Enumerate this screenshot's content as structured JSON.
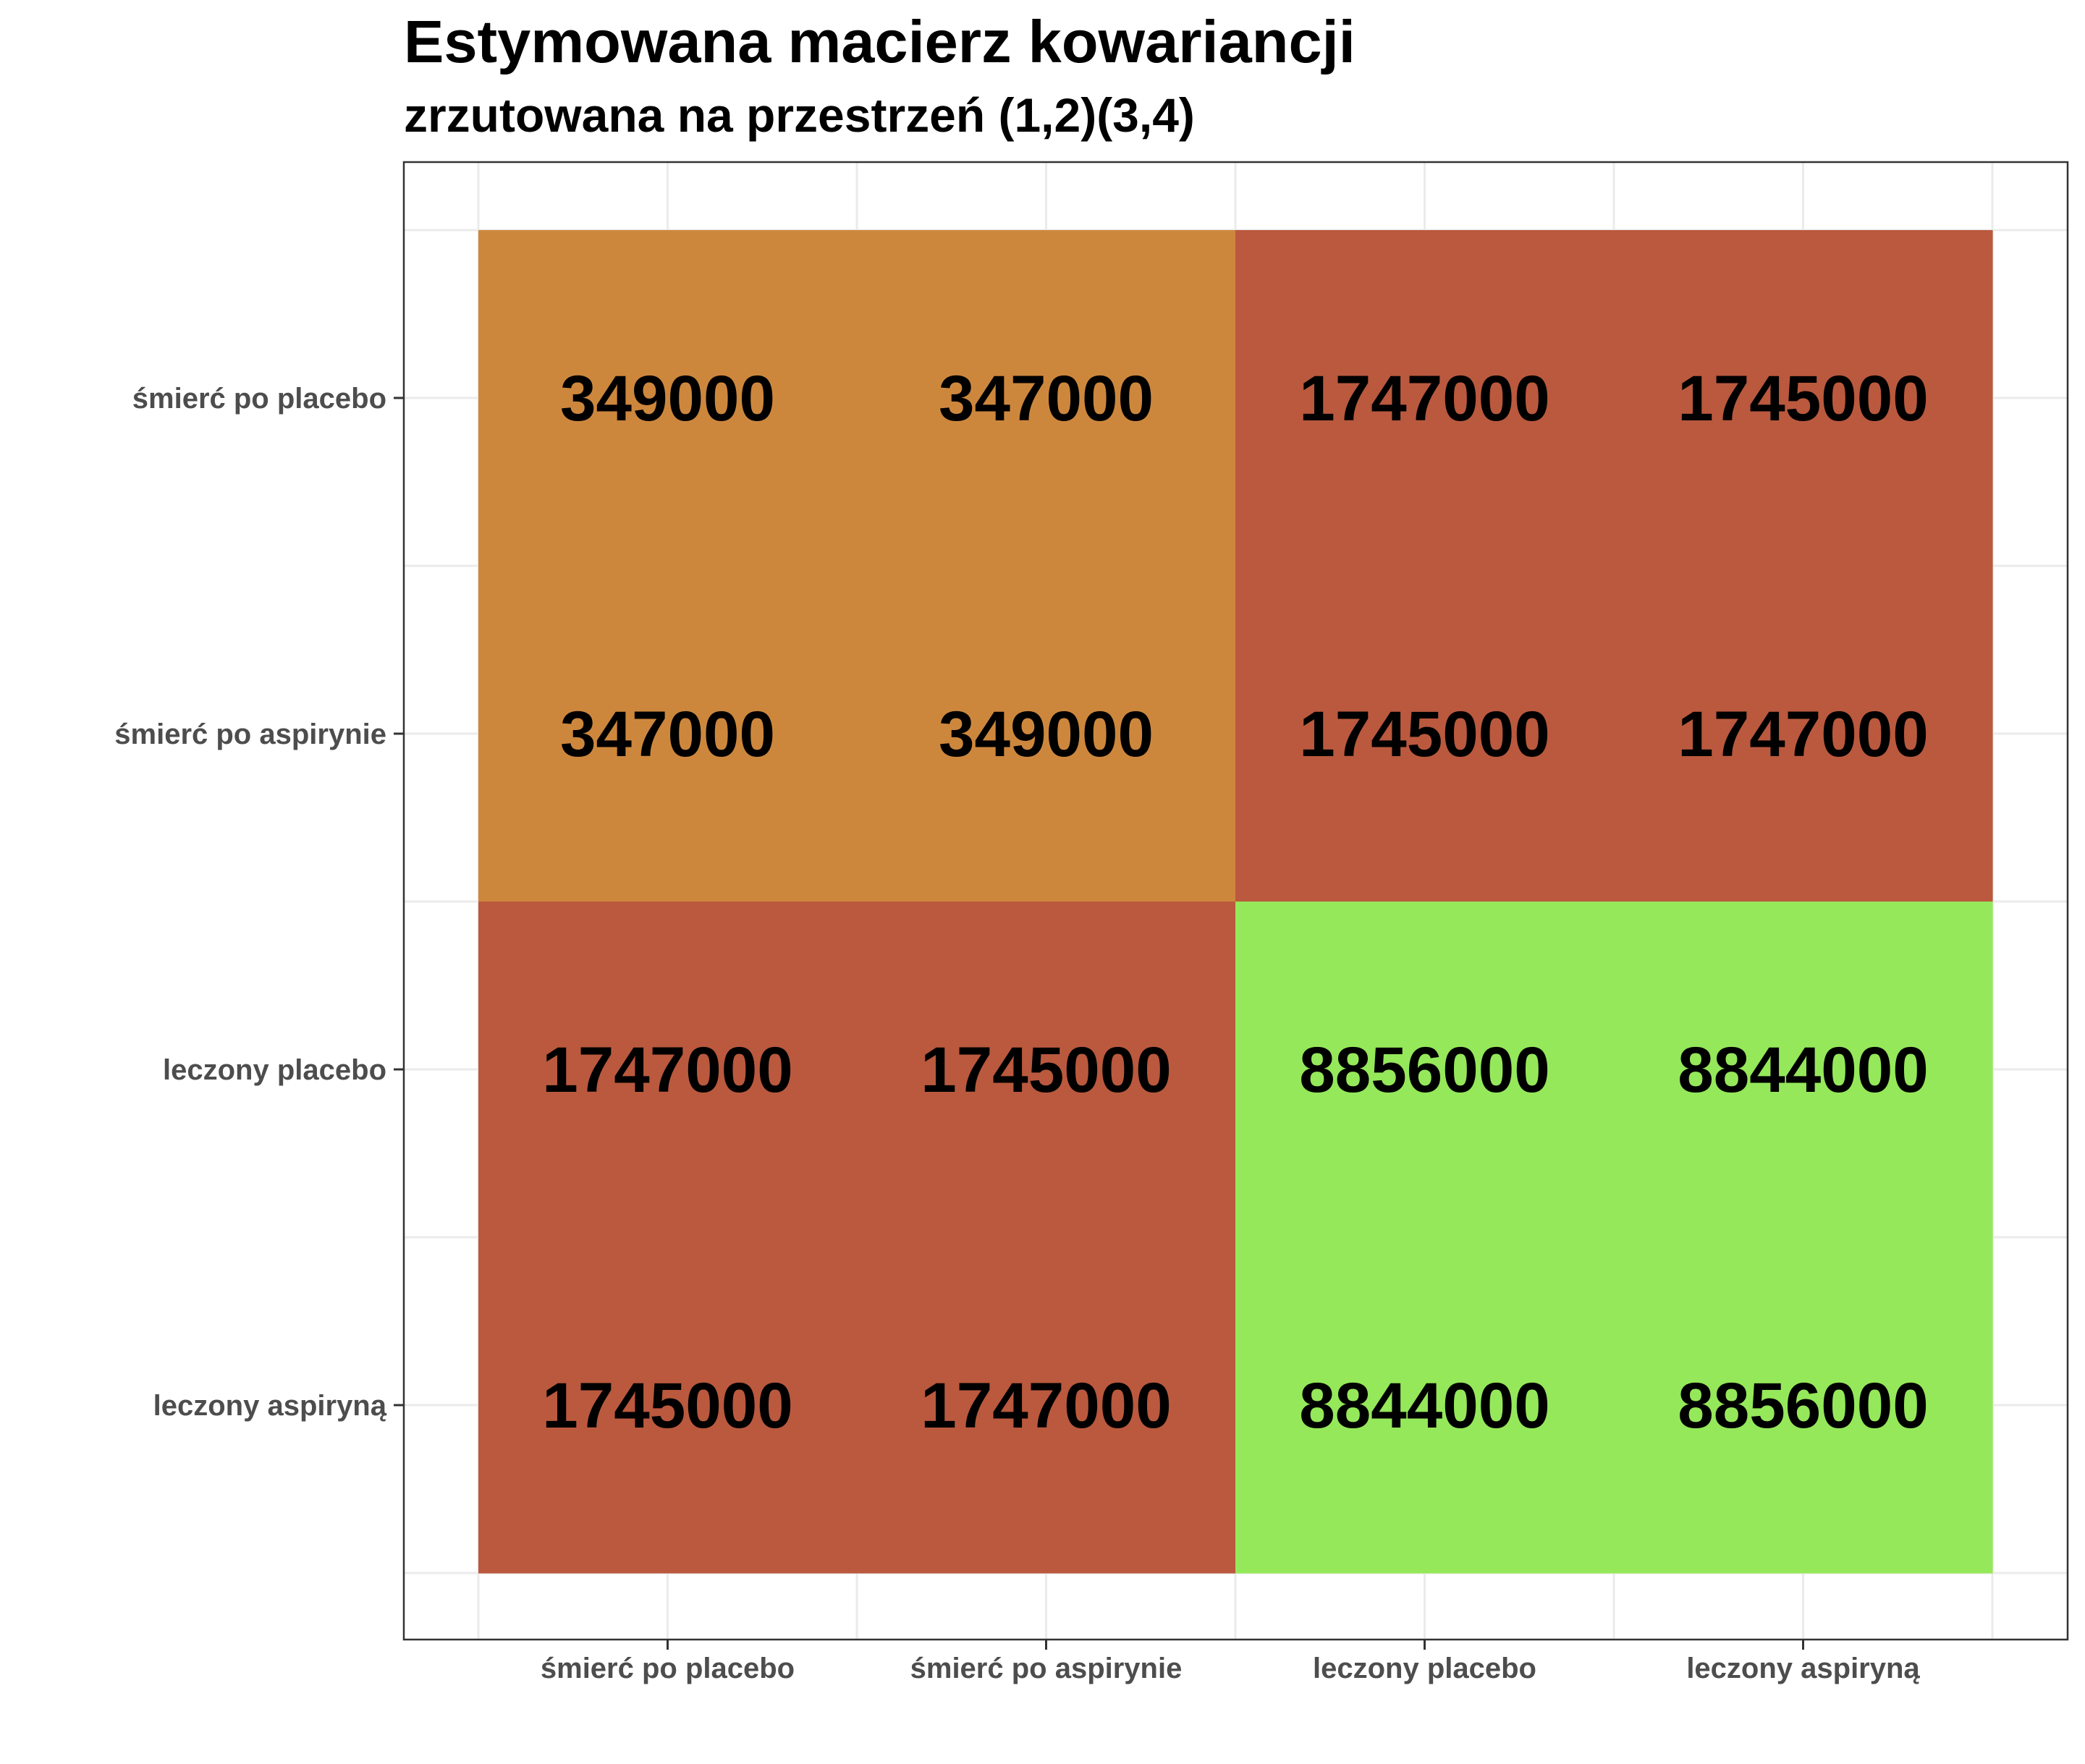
{
  "chart_data": {
    "type": "heatmap",
    "title": "Estymowana macierz kowariancji",
    "subtitle": "zrzutowana na przestrzeń (1,2)(3,4)",
    "xlabel": "",
    "ylabel": "",
    "x_categories": [
      "śmierć po placebo",
      "śmierć po aspirynie",
      "leczony placebo",
      "leczony aspiryną"
    ],
    "y_categories": [
      "śmierć po placebo",
      "śmierć po aspirynie",
      "leczony placebo",
      "leczony aspiryną"
    ],
    "values": [
      [
        349000,
        347000,
        1747000,
        1745000
      ],
      [
        347000,
        349000,
        1745000,
        1747000
      ],
      [
        1747000,
        1745000,
        8856000,
        8844000
      ],
      [
        1745000,
        1747000,
        8844000,
        8856000
      ]
    ],
    "value_labels": [
      [
        "349000",
        "347000",
        "1747000",
        "1745000"
      ],
      [
        "347000",
        "349000",
        "1745000",
        "1747000"
      ],
      [
        "1747000",
        "1745000",
        "8856000",
        "8844000"
      ],
      [
        "1745000",
        "1747000",
        "8844000",
        "8856000"
      ]
    ],
    "block_colors": {
      "low": "#cd873d",
      "mid": "#ba593e",
      "high": "#95e85a"
    },
    "panel_background": "#ffffff",
    "grid": true,
    "legend": "none"
  }
}
